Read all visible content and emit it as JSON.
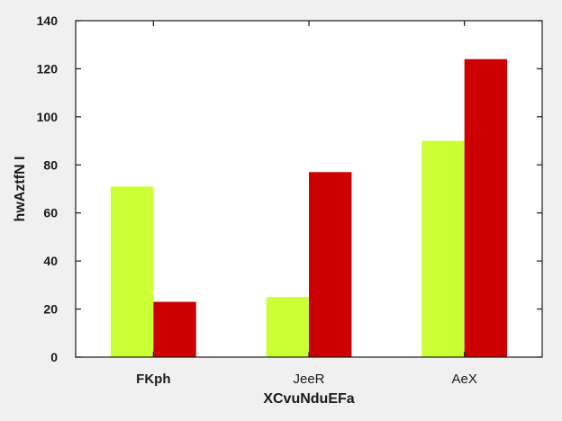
{
  "chart_data": {
    "type": "bar",
    "title": "",
    "xlabel": "XCvuNduEFa",
    "ylabel": "hwAztfN I",
    "categories": [
      "FKph",
      "JeeR",
      "AeX"
    ],
    "series": [
      {
        "color": "#ccff33",
        "values": [
          71,
          25,
          90
        ]
      },
      {
        "color": "#cc0000",
        "values": [
          23,
          77,
          124
        ]
      }
    ],
    "ylim": [
      0,
      140
    ],
    "yticks": [
      0,
      20,
      40,
      60,
      80,
      100,
      120,
      140
    ],
    "grid": false,
    "legend": "none"
  }
}
